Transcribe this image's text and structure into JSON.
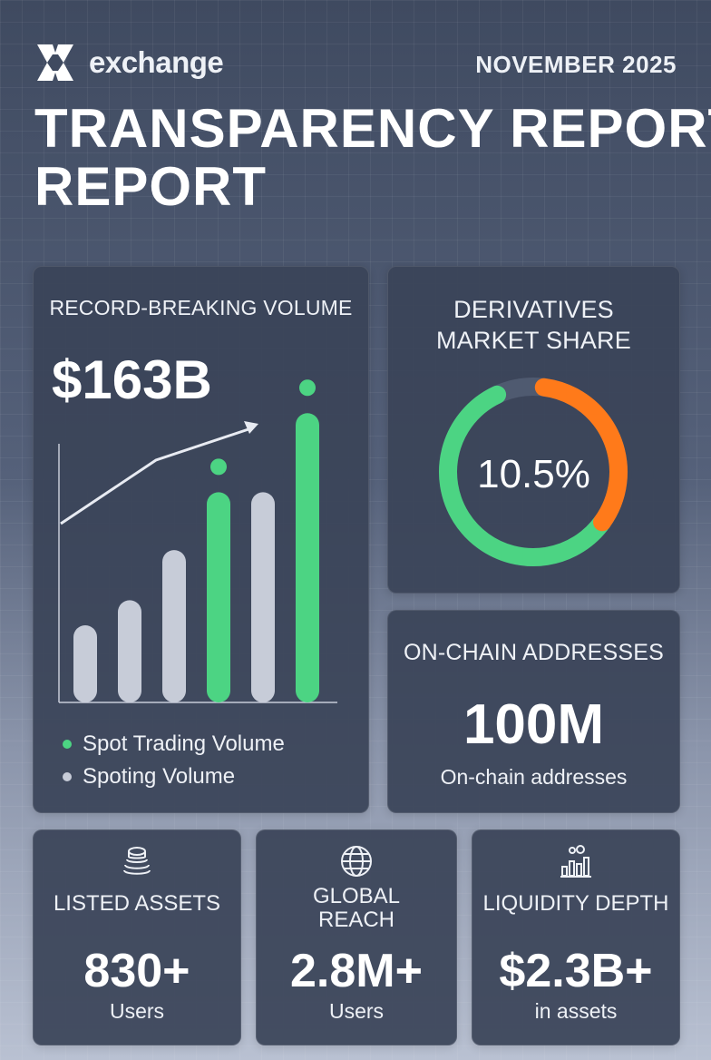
{
  "header": {
    "brand": "exchange",
    "date": "NOVEMBER 2025",
    "title_line1": "TRANSPARENCY REPORT",
    "title_line2": "REPORT"
  },
  "volume_card": {
    "title": "RECORD-BREAKING VOLUME",
    "value": "$163B",
    "legend": [
      {
        "label": "Spot Trading Volume",
        "color": "#4cd483"
      },
      {
        "label": "Spoting Volume",
        "color": "#c7ccd8"
      }
    ]
  },
  "chart_data": {
    "type": "bar",
    "categories": [
      "",
      "",
      "",
      "",
      "",
      ""
    ],
    "values": [
      80,
      106,
      158,
      218,
      218,
      300
    ],
    "series_colors": [
      "#c7ccd8",
      "#c7ccd8",
      "#c7ccd8",
      "#4cd483",
      "#c7ccd8",
      "#4cd483"
    ],
    "ylim": [
      0,
      320
    ],
    "trend_arrow": true,
    "grid": false
  },
  "derivatives_card": {
    "title_line1": "DERIVATIVES",
    "title_line2": "MARKET SHARE",
    "value": "10.5%",
    "segments": [
      {
        "color": "#4cd483",
        "fraction": 0.58
      },
      {
        "color": "#ff7a1a",
        "fraction": 0.33
      }
    ]
  },
  "onchain_card": {
    "title": "ON-CHAIN ADDRESSES",
    "value": "100M",
    "subtitle": "On-chain addresses"
  },
  "stats": {
    "assets": {
      "icon": "coin-stack-icon",
      "label": "LISTED ASSETS",
      "value": "830+",
      "sub": "Users"
    },
    "reach": {
      "icon": "globe-icon",
      "label_line1": "GLOBAL",
      "label_line2": "REACH",
      "value": "2.8M+",
      "sub": "Users"
    },
    "liquidity": {
      "icon": "bar-chart-coins-icon",
      "label": "LIQUIDITY DEPTH",
      "value": "$2.3B+",
      "sub": "in assets"
    }
  }
}
